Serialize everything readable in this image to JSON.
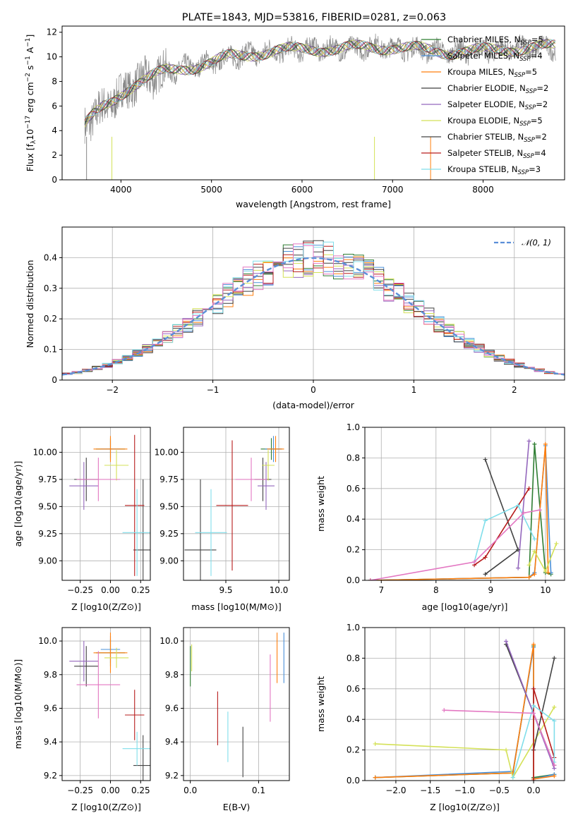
{
  "figure": {
    "title": "PLATE=1843, MJD=53816, FIBERID=0281, z=0.063"
  },
  "colors": {
    "Chabrier MILES": "#2e7d32",
    "Salpeter MILES": "#4a90d9",
    "Kroupa MILES": "#ff7f0e",
    "Chabrier ELODIE": "#3f3f3f",
    "Salpeter ELODIE": "#9467bd",
    "Kroupa ELODIE": "#d4e157",
    "Chabrier STELIB": "#444444",
    "Salpeter STELIB": "#b71c1c",
    "Kroupa STELIB": "#80deea",
    "observed": "#888888",
    "normal": "#5b8fd8",
    "pink": "#e377c2"
  },
  "chart_data": [
    {
      "type": "line",
      "xlabel": "wavelength [Angstrom, rest frame]",
      "ylabel": "Flux [f_λ 10^-17 erg cm^-2 s^-1 A^-1]",
      "xlim": [
        3350,
        8900
      ],
      "ylim": [
        0,
        12.5
      ],
      "xticks": [
        4000,
        5000,
        6000,
        7000,
        8000
      ],
      "yticks": [
        0,
        2,
        4,
        6,
        8,
        10,
        12
      ],
      "grid": false,
      "legend_position": "top-right",
      "legend": [
        "Chabrier MILES, N_SSP=5",
        "Salpeter MILES, N_SSP=4",
        "Kroupa MILES, N_SSP=5",
        "Chabrier ELODIE, N_SSP=2",
        "Salpeter ELODIE, N_SSP=2",
        "Kroupa ELODIE, N_SSP=5",
        "Chabrier STELIB, N_SSP=2",
        "Salpeter STELIB, N_SSP=4",
        "Kroupa STELIB, N_SSP=3"
      ],
      "spectrum_continuum": {
        "x": [
          3600,
          3700,
          3800,
          3900,
          4000,
          4100,
          4200,
          4300,
          4500,
          4700,
          5000,
          5200,
          5500,
          5800,
          6100,
          6400,
          6700,
          7000,
          7300,
          7600,
          8000,
          8400,
          8800
        ],
        "y": [
          4.5,
          5.2,
          5.8,
          6.3,
          7.0,
          7.6,
          8.0,
          8.3,
          8.8,
          9.1,
          9.5,
          10.0,
          10.3,
          10.5,
          10.7,
          10.6,
          10.8,
          10.8,
          10.6,
          10.4,
          10.5,
          10.7,
          10.8
        ]
      }
    },
    {
      "type": "histogram",
      "xlabel": "(data-model)/error",
      "ylabel": "Normed distribution",
      "xlim": [
        -2.5,
        2.5
      ],
      "ylim": [
        0,
        0.5
      ],
      "xticks": [
        -2,
        -1,
        0,
        1,
        2
      ],
      "yticks": [
        0.0,
        0.1,
        0.2,
        0.3,
        0.4
      ],
      "grid": true,
      "legend_position": "top-right",
      "legend": [
        "𝒩(0, 1)"
      ],
      "bin_width": 0.1
    },
    {
      "type": "scatter",
      "xlabel": "Z [log10(Z/Z⊙)]",
      "ylabel": "age  [log10(age/yr)]",
      "xlim": [
        -0.4,
        0.33
      ],
      "ylim": [
        8.82,
        10.23
      ],
      "xticks": [
        -0.25,
        0.0,
        0.25
      ],
      "xticklabels": [
        "−0.25",
        "0.00",
        "0.25"
      ],
      "yticks": [
        9.0,
        9.25,
        9.5,
        9.75,
        10.0
      ],
      "yticklabels": [
        "9.00",
        "9.25",
        "9.50",
        "9.75",
        "10.00"
      ],
      "grid": true,
      "points": [
        {
          "model": "Chabrier MILES",
          "x": 0.0,
          "y": 10.03,
          "xerr": 0.12,
          "yerr": 0.1
        },
        {
          "model": "Salpeter MILES",
          "x": 0.0,
          "y": 10.03,
          "xerr": 0.08,
          "yerr": 0.08
        },
        {
          "model": "Kroupa MILES",
          "x": 0.0,
          "y": 10.03,
          "xerr": 0.14,
          "yerr": 0.12
        },
        {
          "model": "Chabrier ELODIE",
          "x": -0.2,
          "y": 9.75,
          "xerr": 0.1,
          "yerr": 0.2
        },
        {
          "model": "Salpeter ELODIE",
          "x": -0.22,
          "y": 9.69,
          "xerr": 0.12,
          "yerr": 0.22
        },
        {
          "model": "Kroupa ELODIE",
          "x": 0.05,
          "y": 9.88,
          "xerr": 0.1,
          "yerr": 0.14
        },
        {
          "model": "Chabrier STELIB",
          "x": 0.27,
          "y": 9.1,
          "xerr": 0.08,
          "yerr": 0.65
        },
        {
          "model": "Salpeter STELIB",
          "x": 0.2,
          "y": 9.51,
          "xerr": 0.08,
          "yerr": 0.65
        },
        {
          "model": "Kroupa STELIB",
          "x": 0.22,
          "y": 9.26,
          "xerr": 0.12,
          "yerr": 0.4
        },
        {
          "model": "pink",
          "x": -0.1,
          "y": 9.75,
          "xerr": 0.18,
          "yerr": 0.2
        }
      ]
    },
    {
      "type": "scatter",
      "xlabel": "mass [log10(M/M⊙)]",
      "ylabel": "",
      "xlim": [
        9.1,
        10.1
      ],
      "ylim": [
        8.82,
        10.23
      ],
      "xticks": [
        9.5,
        10.0
      ],
      "xticklabels": [
        "9.5",
        "10.0"
      ],
      "yticks": [
        9.0,
        9.25,
        9.5,
        9.75,
        10.0
      ],
      "yticklabels": [
        "9.00",
        "9.25",
        "9.50",
        "9.75",
        "10.00"
      ],
      "grid": true,
      "points": [
        {
          "model": "Chabrier MILES",
          "x": 9.93,
          "y": 10.03,
          "xerr": 0.1,
          "yerr": 0.1
        },
        {
          "model": "Salpeter MILES",
          "x": 9.95,
          "y": 10.03,
          "xerr": 0.08,
          "yerr": 0.12
        },
        {
          "model": "Kroupa MILES",
          "x": 9.97,
          "y": 10.03,
          "xerr": 0.08,
          "yerr": 0.12
        },
        {
          "model": "Chabrier ELODIE",
          "x": 9.85,
          "y": 9.75,
          "xerr": 0.08,
          "yerr": 0.2
        },
        {
          "model": "Salpeter ELODIE",
          "x": 9.88,
          "y": 9.69,
          "xerr": 0.08,
          "yerr": 0.22
        },
        {
          "model": "Kroupa ELODIE",
          "x": 9.9,
          "y": 9.88,
          "xerr": 0.06,
          "yerr": 0.14
        },
        {
          "model": "Chabrier STELIB",
          "x": 9.26,
          "y": 9.1,
          "xerr": 0.15,
          "yerr": 0.65
        },
        {
          "model": "Salpeter STELIB",
          "x": 9.56,
          "y": 9.51,
          "xerr": 0.15,
          "yerr": 0.6
        },
        {
          "model": "Kroupa STELIB",
          "x": 9.36,
          "y": 9.26,
          "xerr": 0.15,
          "yerr": 0.4
        },
        {
          "model": "pink",
          "x": 9.74,
          "y": 9.75,
          "xerr": 0.15,
          "yerr": 0.2
        }
      ]
    },
    {
      "type": "line",
      "xlabel": "age  [log10(age/yr)]",
      "ylabel": "mass weight",
      "xlim": [
        6.7,
        10.35
      ],
      "ylim": [
        0,
        1
      ],
      "xticks": [
        7,
        8,
        9,
        10
      ],
      "yticks": [
        0.0,
        0.2,
        0.4,
        0.6,
        0.8,
        1.0
      ],
      "yticklabels": [
        "0.0",
        "0.2",
        "0.4",
        "0.6",
        "0.8",
        "1.0"
      ],
      "grid": true,
      "series": [
        {
          "model": "Chabrier MILES",
          "x": [
            6.8,
            9.7,
            9.8,
            10.0,
            10.1
          ],
          "y": [
            0.0,
            0.02,
            0.89,
            0.05,
            0.04
          ]
        },
        {
          "model": "Salpeter MILES",
          "x": [
            6.8,
            9.7,
            9.8,
            10.0,
            10.1
          ],
          "y": [
            0.0,
            0.02,
            0.05,
            0.88,
            0.05
          ]
        },
        {
          "model": "Kroupa MILES",
          "x": [
            6.8,
            9.7,
            9.8,
            10.0,
            10.05
          ],
          "y": [
            0.0,
            0.02,
            0.04,
            0.89,
            0.05
          ]
        },
        {
          "model": "Chabrier ELODIE",
          "x": [
            8.9,
            9.5
          ],
          "y": [
            0.04,
            0.2
          ]
        },
        {
          "model": "Salpeter ELODIE",
          "x": [
            9.5,
            9.7
          ],
          "y": [
            0.08,
            0.91
          ]
        },
        {
          "model": "Kroupa ELODIE",
          "x": [
            9.7,
            9.8,
            10.0,
            10.2
          ],
          "y": [
            0.1,
            0.19,
            0.06,
            0.24
          ]
        },
        {
          "model": "Chabrier STELIB",
          "x": [
            8.9,
            9.5
          ],
          "y": [
            0.79,
            0.2
          ]
        },
        {
          "model": "Salpeter STELIB",
          "x": [
            8.7,
            8.9,
            9.7
          ],
          "y": [
            0.1,
            0.15,
            0.6
          ]
        },
        {
          "model": "Kroupa STELIB",
          "x": [
            8.7,
            8.9,
            9.5,
            9.8
          ],
          "y": [
            0.12,
            0.39,
            0.49,
            0.27
          ]
        },
        {
          "model": "pink",
          "x": [
            6.8,
            8.7,
            9.6,
            9.9
          ],
          "y": [
            0.0,
            0.12,
            0.44,
            0.46
          ]
        }
      ]
    },
    {
      "type": "scatter",
      "xlabel": "Z [log10(Z/Z⊙)]",
      "ylabel": "mass [log10(M/M⊙)]",
      "xlim": [
        -0.4,
        0.33
      ],
      "ylim": [
        9.17,
        10.08
      ],
      "xticks": [
        -0.25,
        0.0,
        0.25
      ],
      "xticklabels": [
        "−0.25",
        "0.00",
        "0.25"
      ],
      "yticks": [
        9.2,
        9.4,
        9.6,
        9.8,
        10.0
      ],
      "yticklabels": [
        "9.2",
        "9.4",
        "9.6",
        "9.8",
        "10.0"
      ],
      "grid": true,
      "points": [
        {
          "model": "Chabrier MILES",
          "x": 0.0,
          "y": 9.93,
          "xerr": 0.12,
          "yerr": 0.08
        },
        {
          "model": "Salpeter MILES",
          "x": 0.0,
          "y": 9.95,
          "xerr": 0.08,
          "yerr": 0.08
        },
        {
          "model": "Kroupa MILES",
          "x": 0.0,
          "y": 9.93,
          "xerr": 0.14,
          "yerr": 0.12
        },
        {
          "model": "Chabrier ELODIE",
          "x": -0.2,
          "y": 9.85,
          "xerr": 0.1,
          "yerr": 0.12
        },
        {
          "model": "Salpeter ELODIE",
          "x": -0.22,
          "y": 9.88,
          "xerr": 0.12,
          "yerr": 0.12
        },
        {
          "model": "Kroupa ELODIE",
          "x": 0.05,
          "y": 9.9,
          "xerr": 0.1,
          "yerr": 0.06
        },
        {
          "model": "Chabrier STELIB",
          "x": 0.27,
          "y": 9.26,
          "xerr": 0.08,
          "yerr": 0.18
        },
        {
          "model": "Salpeter STELIB",
          "x": 0.2,
          "y": 9.56,
          "xerr": 0.08,
          "yerr": 0.15
        },
        {
          "model": "Kroupa STELIB",
          "x": 0.22,
          "y": 9.36,
          "xerr": 0.12,
          "yerr": 0.1
        },
        {
          "model": "pink",
          "x": -0.1,
          "y": 9.74,
          "xerr": 0.18,
          "yerr": 0.2
        }
      ]
    },
    {
      "type": "scatter",
      "xlabel": "E(B-V)",
      "ylabel": "",
      "xlim": [
        -0.01,
        0.145
      ],
      "ylim": [
        9.17,
        10.08
      ],
      "xticks": [
        0.0,
        0.1
      ],
      "xticklabels": [
        "0.0",
        "0.1"
      ],
      "yticks": [
        9.2,
        9.4,
        9.6,
        9.8,
        10.0
      ],
      "yticklabels": [
        "9.2",
        "9.4",
        "9.6",
        "9.8",
        "10.0"
      ],
      "grid": true,
      "points": [
        {
          "model": "Chabrier MILES",
          "x": 0.0,
          "y": 9.85,
          "xerr": 0,
          "yerr": 0.12
        },
        {
          "model": "Kroupa ELODIE",
          "x": 0.002,
          "y": 9.9,
          "xerr": 0,
          "yerr": 0.08
        },
        {
          "model": "Salpeter STELIB",
          "x": 0.04,
          "y": 9.54,
          "xerr": 0,
          "yerr": 0.16
        },
        {
          "model": "Kroupa STELIB",
          "x": 0.055,
          "y": 9.43,
          "xerr": 0,
          "yerr": 0.15
        },
        {
          "model": "Chabrier STELIB",
          "x": 0.077,
          "y": 9.34,
          "xerr": 0,
          "yerr": 0.15
        },
        {
          "model": "pink",
          "x": 0.117,
          "y": 9.72,
          "xerr": 0,
          "yerr": 0.2
        },
        {
          "model": "Kroupa MILES",
          "x": 0.127,
          "y": 9.9,
          "xerr": 0,
          "yerr": 0.15
        },
        {
          "model": "Salpeter MILES",
          "x": 0.137,
          "y": 9.9,
          "xerr": 0,
          "yerr": 0.15
        }
      ]
    },
    {
      "type": "line",
      "xlabel": "Z [log10(Z/Z⊙)]",
      "ylabel": "mass weight",
      "xlim": [
        -2.45,
        0.45
      ],
      "ylim": [
        0,
        1
      ],
      "xticks": [
        -2.0,
        -1.5,
        -1.0,
        -0.5,
        0.0
      ],
      "xticklabels": [
        "−2.0",
        "−1.5",
        "−1.0",
        "−0.5",
        "0.0"
      ],
      "yticks": [
        0.0,
        0.2,
        0.4,
        0.6,
        0.8,
        1.0
      ],
      "yticklabels": [
        "0.0",
        "0.2",
        "0.4",
        "0.6",
        "0.8",
        "1.0"
      ],
      "grid": true,
      "series": [
        {
          "model": "Chabrier MILES",
          "x": [
            -2.3,
            -0.3,
            0.0,
            0.0,
            0.3
          ],
          "y": [
            0.02,
            0.05,
            0.88,
            0.02,
            0.04
          ]
        },
        {
          "model": "Salpeter MILES",
          "x": [
            -2.3,
            -0.3,
            0.0,
            0.0,
            0.3
          ],
          "y": [
            0.02,
            0.06,
            0.87,
            0.01,
            0.04
          ]
        },
        {
          "model": "Kroupa MILES",
          "x": [
            -2.3,
            -0.3,
            0.0,
            0.0,
            0.3
          ],
          "y": [
            0.02,
            0.05,
            0.89,
            0.01,
            0.03
          ]
        },
        {
          "model": "Chabrier ELODIE",
          "x": [
            -0.4,
            0.3
          ],
          "y": [
            0.89,
            0.1
          ]
        },
        {
          "model": "Salpeter ELODIE",
          "x": [
            -0.4,
            0.3
          ],
          "y": [
            0.91,
            0.08
          ]
        },
        {
          "model": "Kroupa ELODIE",
          "x": [
            -2.3,
            -0.4,
            -0.3,
            0.3
          ],
          "y": [
            0.24,
            0.2,
            0.02,
            0.48
          ]
        },
        {
          "model": "Chabrier STELIB",
          "x": [
            0.0,
            0.3
          ],
          "y": [
            0.2,
            0.8
          ]
        },
        {
          "model": "Salpeter STELIB",
          "x": [
            0.0,
            0.0,
            0.3
          ],
          "y": [
            0.0,
            0.6,
            0.15
          ]
        },
        {
          "model": "Kroupa STELIB",
          "x": [
            -0.3,
            0.0,
            0.3,
            0.3
          ],
          "y": [
            0.02,
            0.49,
            0.39,
            0.12
          ]
        },
        {
          "model": "pink",
          "x": [
            -1.3,
            0.0,
            0.3
          ],
          "y": [
            0.46,
            0.44,
            0.1
          ]
        }
      ]
    }
  ]
}
